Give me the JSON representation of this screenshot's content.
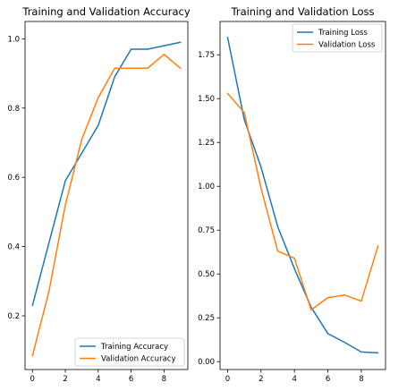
{
  "chart_data": [
    {
      "type": "line",
      "title": "Training and Validation Accuracy",
      "xlabel": "",
      "ylabel": "",
      "xlim": [
        -0.45,
        9.45
      ],
      "ylim": [
        0.045,
        1.05
      ],
      "xticks": [
        0,
        2,
        4,
        6,
        8
      ],
      "yticks": [
        0.2,
        0.4,
        0.6,
        0.8,
        1.0
      ],
      "ytick_labels": [
        "0.2",
        "0.4",
        "0.6",
        "0.8",
        "1.0"
      ],
      "grid": false,
      "legend_position": "lower-right",
      "x": [
        0,
        1,
        2,
        3,
        4,
        5,
        6,
        7,
        8,
        9
      ],
      "series": [
        {
          "name": "Training Accuracy",
          "color": "#1f77b4",
          "values": [
            0.23,
            0.41,
            0.59,
            0.67,
            0.75,
            0.89,
            0.97,
            0.97,
            0.98,
            0.99
          ]
        },
        {
          "name": "Validation Accuracy",
          "color": "#ff7f0e",
          "values": [
            0.085,
            0.27,
            0.52,
            0.71,
            0.83,
            0.915,
            0.915,
            0.915,
            0.955,
            0.915
          ]
        }
      ]
    },
    {
      "type": "line",
      "title": "Training and Validation Loss",
      "xlabel": "",
      "ylabel": "",
      "xlim": [
        -0.45,
        9.45
      ],
      "ylim": [
        -0.045,
        1.94
      ],
      "xticks": [
        0,
        2,
        4,
        6,
        8
      ],
      "yticks": [
        0.0,
        0.25,
        0.5,
        0.75,
        1.0,
        1.25,
        1.5,
        1.75
      ],
      "ytick_labels": [
        "0.00",
        "0.25",
        "0.50",
        "0.75",
        "1.00",
        "1.25",
        "1.50",
        "1.75"
      ],
      "grid": false,
      "legend_position": "upper-right",
      "x": [
        0,
        1,
        2,
        3,
        4,
        5,
        6,
        7,
        8,
        9
      ],
      "series": [
        {
          "name": "Training Loss",
          "color": "#1f77b4",
          "values": [
            1.85,
            1.38,
            1.11,
            0.77,
            0.53,
            0.31,
            0.16,
            0.11,
            0.055,
            0.05
          ]
        },
        {
          "name": "Validation Loss",
          "color": "#ff7f0e",
          "values": [
            1.53,
            1.42,
            0.99,
            0.63,
            0.59,
            0.295,
            0.365,
            0.38,
            0.345,
            0.66
          ]
        }
      ]
    }
  ]
}
